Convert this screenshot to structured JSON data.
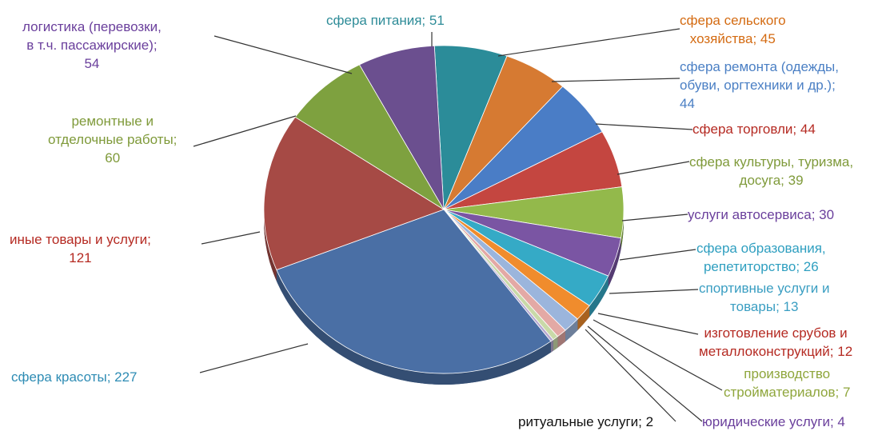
{
  "chart_data": {
    "type": "pie",
    "title": "",
    "slices": [
      {
        "label": "сфера питания; 51",
        "value": 51,
        "color": "#2b8c99",
        "text_color": "#2e8c98"
      },
      {
        "label": "сфера сельского\nхозяйства; 45",
        "value": 45,
        "color": "#d67a32",
        "text_color": "#d46b12"
      },
      {
        "label": "сфера ремонта (одежды,\nобуви, оргтехники и др.);\n44",
        "value": 44,
        "color": "#4a7dc6",
        "text_color": "#4a7fc4"
      },
      {
        "label": "сфера торговли; 44",
        "value": 44,
        "color": "#c44640",
        "text_color": "#b52a22"
      },
      {
        "label": "сфера культуры, туризма,\nдосуга; 39",
        "value": 39,
        "color": "#93b94b",
        "text_color": "#7f9a3a"
      },
      {
        "label": "услуги автосервиса; 30",
        "value": 30,
        "color": "#7a55a3",
        "text_color": "#6a3f9c"
      },
      {
        "label": "сфера образования,\nрепетиторство; 26",
        "value": 26,
        "color": "#35aac6",
        "text_color": "#2f9fc0"
      },
      {
        "label": "спортивные услуги и\nтовары; 13",
        "value": 13,
        "color": "#f08c2d",
        "text_color": "#3a9ec2"
      },
      {
        "label": "изготовление срубов и\nметаллоконструкций; 12",
        "value": 12,
        "color": "#9bb5dc",
        "text_color": "#b52a22"
      },
      {
        "label": "производство\nстройматериалов; 7",
        "value": 7,
        "color": "#e3a9a5",
        "text_color": "#8fa63c"
      },
      {
        "label": "юридические услуги; 4",
        "value": 4,
        "color": "#c9d9a8",
        "text_color": "#6a3f9c"
      },
      {
        "label": "ритуальные услуги; 2",
        "value": 2,
        "color": "#b8a8d0",
        "text_color": "#111111"
      },
      {
        "label": "сфера красоты; 227",
        "value": 227,
        "color": "#4a6fa5",
        "text_color": "#2e8cb4"
      },
      {
        "label": "иные товары и услуги;\n121",
        "value": 121,
        "color": "#a64a45",
        "text_color": "#b52a22"
      },
      {
        "label": "ремонтные и\nотделочные работы;\n60",
        "value": 60,
        "color": "#7ea13f",
        "text_color": "#7f9a3a"
      },
      {
        "label": "логистика (перевозки,\nв т.ч. пассажирские);\n54",
        "value": 54,
        "color": "#6b4f8f",
        "text_color": "#6a3f9c"
      }
    ]
  }
}
